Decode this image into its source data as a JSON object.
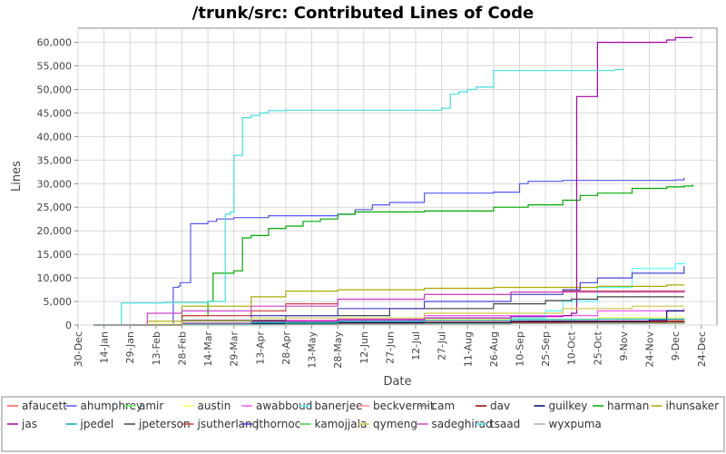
{
  "chart_data": {
    "type": "line",
    "title": "/trunk/src: Contributed Lines of Code",
    "xlabel": "Date",
    "ylabel": "Lines",
    "ylim": [
      0,
      63000
    ],
    "y_ticks": [
      0,
      5000,
      10000,
      15000,
      20000,
      25000,
      30000,
      35000,
      40000,
      45000,
      50000,
      55000,
      60000
    ],
    "y_tick_labels": [
      "0",
      "5,000",
      "10,000",
      "15,000",
      "20,000",
      "25,000",
      "30,000",
      "35,000",
      "40,000",
      "45,000",
      "50,000",
      "55,000",
      "60,000"
    ],
    "x_tick_labels": [
      "30-Dec",
      "14-Jan",
      "29-Jan",
      "13-Feb",
      "28-Feb",
      "14-Mar",
      "29-Mar",
      "13-Apr",
      "28-Apr",
      "13-May",
      "28-May",
      "12-Jun",
      "27-Jun",
      "12-Jul",
      "27-Jul",
      "11-Aug",
      "26-Aug",
      "10-Sep",
      "25-Sep",
      "10-Oct",
      "25-Oct",
      "9-Nov",
      "24-Nov",
      "9-Dec",
      "24-Dec"
    ],
    "x_tick_days": [
      0,
      15,
      30,
      45,
      60,
      75,
      90,
      105,
      120,
      135,
      150,
      165,
      180,
      195,
      210,
      225,
      240,
      255,
      270,
      285,
      300,
      315,
      330,
      345,
      360
    ],
    "xlim_days": [
      0,
      369
    ],
    "grid": true,
    "legend_position": "bottom",
    "series": [
      {
        "name": "afaucett",
        "color": "#ff5555",
        "x": [
          9,
          40,
          100,
          180,
          260,
          300,
          340,
          350
        ],
        "y": [
          0,
          200,
          400,
          700,
          800,
          800,
          1000,
          1000
        ]
      },
      {
        "name": "ahumphrey",
        "color": "#5555ff",
        "x": [
          9,
          55,
          58,
          59,
          65,
          75,
          80,
          90,
          110,
          150,
          160,
          170,
          180,
          200,
          240,
          255,
          260,
          280,
          300,
          330,
          345,
          350
        ],
        "y": [
          0,
          8000,
          8200,
          9000,
          21500,
          22000,
          22500,
          22800,
          23200,
          23500,
          24500,
          25500,
          26000,
          28000,
          28200,
          30000,
          30500,
          30700,
          30700,
          30700,
          30800,
          31300
        ]
      },
      {
        "name": "amir",
        "color": "#55ff55",
        "x": [
          9,
          60,
          100,
          200,
          300,
          350
        ],
        "y": [
          0,
          100,
          300,
          500,
          700,
          800
        ]
      },
      {
        "name": "austin",
        "color": "#ffff55",
        "x": [
          9,
          40,
          100,
          200,
          300,
          350
        ],
        "y": [
          0,
          200,
          700,
          1200,
          1600,
          1800
        ]
      },
      {
        "name": "awabboud",
        "color": "#ff55ff",
        "x": [
          9,
          60,
          100,
          200,
          300,
          350
        ],
        "y": [
          0,
          300,
          1000,
          2000,
          3000,
          3500
        ]
      },
      {
        "name": "banerjee",
        "color": "#55ffff",
        "x": [
          9,
          100,
          200,
          270,
          280,
          300,
          320,
          345,
          350
        ],
        "y": [
          0,
          500,
          1500,
          3000,
          5000,
          8000,
          12000,
          13000,
          13500
        ]
      },
      {
        "name": "beckvermit",
        "color": "#ff8888",
        "x": [
          9,
          60,
          100,
          200,
          300,
          350
        ],
        "y": [
          0,
          100,
          300,
          600,
          900,
          1000
        ]
      },
      {
        "name": "cam",
        "color": "#888888",
        "x": [
          9,
          60,
          150,
          250,
          340,
          350
        ],
        "y": [
          0,
          100,
          300,
          600,
          900,
          1000
        ]
      },
      {
        "name": "dav",
        "color": "#aa0000",
        "x": [
          9,
          60,
          150,
          250,
          300,
          350
        ],
        "y": [
          0,
          200,
          400,
          600,
          700,
          800
        ]
      },
      {
        "name": "guilkey",
        "color": "#000077",
        "x": [
          9,
          60,
          150,
          250,
          330,
          340,
          350
        ],
        "y": [
          0,
          300,
          500,
          800,
          1000,
          3000,
          3000
        ]
      },
      {
        "name": "harman",
        "color": "#00aa00",
        "x": [
          9,
          60,
          75,
          78,
          90,
          95,
          100,
          110,
          120,
          130,
          140,
          150,
          160,
          200,
          240,
          260,
          280,
          290,
          300,
          320,
          340,
          350,
          355
        ],
        "y": [
          0,
          2000,
          5000,
          11000,
          11500,
          18500,
          19000,
          20500,
          21000,
          22000,
          22500,
          23500,
          24000,
          24200,
          25000,
          25500,
          26500,
          27500,
          28000,
          29000,
          29300,
          29500,
          29800
        ]
      },
      {
        "name": "ihunsaker",
        "color": "#aaaa00",
        "x": [
          9,
          40,
          60,
          100,
          120,
          150,
          200,
          240,
          260,
          300,
          340,
          350
        ],
        "y": [
          0,
          800,
          4000,
          6000,
          7200,
          7500,
          7800,
          8000,
          8000,
          8200,
          8500,
          8600
        ]
      },
      {
        "name": "jas",
        "color": "#aa00aa",
        "x": [
          9,
          60,
          100,
          150,
          200,
          250,
          280,
          285,
          288,
          295,
          300,
          340,
          345,
          355
        ],
        "y": [
          0,
          300,
          800,
          1200,
          1500,
          1800,
          2000,
          2500,
          48500,
          48500,
          60000,
          60500,
          61000,
          61000
        ]
      },
      {
        "name": "jpedel",
        "color": "#00aaaa",
        "x": [
          9,
          60,
          100,
          150,
          200,
          250,
          300,
          350
        ],
        "y": [
          0,
          200,
          500,
          800,
          1000,
          1200,
          1300,
          1400
        ]
      },
      {
        "name": "jpeterson",
        "color": "#444444",
        "x": [
          9,
          60,
          120,
          180,
          240,
          270,
          285,
          300,
          350
        ],
        "y": [
          0,
          1000,
          2000,
          3500,
          4500,
          5200,
          5500,
          6000,
          6000
        ]
      },
      {
        "name": "jsutherland",
        "color": "#cc4444",
        "x": [
          9,
          60,
          100,
          120,
          150,
          200,
          250,
          280,
          300,
          350
        ],
        "y": [
          0,
          2000,
          3000,
          4500,
          5500,
          6500,
          7000,
          7200,
          7200,
          7300
        ]
      },
      {
        "name": "jthornoc",
        "color": "#4444cc",
        "x": [
          9,
          60,
          100,
          150,
          200,
          250,
          280,
          290,
          300,
          320,
          350
        ],
        "y": [
          0,
          800,
          2000,
          3500,
          5000,
          6500,
          7500,
          9000,
          10000,
          11000,
          12500
        ]
      },
      {
        "name": "kamojjala",
        "color": "#44cc44",
        "x": [
          9,
          60,
          120,
          200,
          280,
          350
        ],
        "y": [
          0,
          100,
          200,
          300,
          400,
          500
        ]
      },
      {
        "name": "qymeng",
        "color": "#cccc44",
        "x": [
          9,
          60,
          100,
          200,
          280,
          320,
          350
        ],
        "y": [
          0,
          800,
          1500,
          2500,
          3500,
          4000,
          4000
        ]
      },
      {
        "name": "sadeghirad",
        "color": "#cc44cc",
        "x": [
          9,
          40,
          60,
          100,
          150,
          200,
          250,
          350
        ],
        "y": [
          0,
          2500,
          3000,
          4000,
          5500,
          6500,
          7000,
          7500
        ]
      },
      {
        "name": "tsaad",
        "color": "#44dddd",
        "x": [
          9,
          25,
          50,
          75,
          85,
          88,
          90,
          95,
          100,
          105,
          110,
          120,
          150,
          180,
          200,
          210,
          215,
          220,
          225,
          230,
          240,
          260,
          290,
          300,
          310,
          315
        ],
        "y": [
          0,
          4700,
          4800,
          5000,
          23500,
          24000,
          36000,
          44000,
          44500,
          45000,
          45500,
          45600,
          45600,
          45600,
          45600,
          46000,
          49000,
          49500,
          50000,
          50500,
          54000,
          54000,
          54000,
          54000,
          54200,
          54500
        ]
      },
      {
        "name": "wyxpuma",
        "color": "#aaaaaa",
        "x": [
          9,
          60,
          150,
          250,
          350
        ],
        "y": [
          0,
          100,
          200,
          300,
          400
        ]
      }
    ]
  }
}
